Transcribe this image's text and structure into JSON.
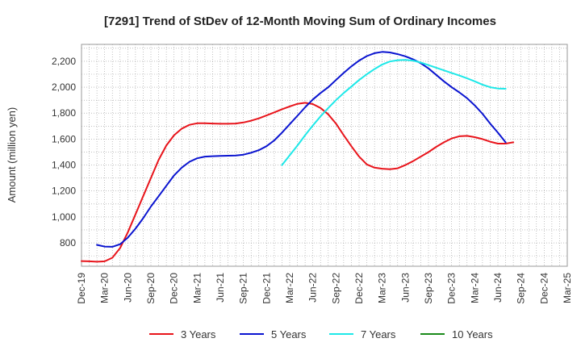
{
  "chart_data": {
    "type": "line",
    "title": "[7291]  Trend of StDev of 12-Month Moving Sum of Ordinary Incomes",
    "xlabel": "",
    "ylabel": "Amount (million yen)",
    "ylim": [
      620,
      2330
    ],
    "yticks": [
      800,
      1000,
      1200,
      1400,
      1600,
      1800,
      2000,
      2200
    ],
    "ytick_labels": [
      "800",
      "1,000",
      "1,200",
      "1,400",
      "1,600",
      "1,800",
      "2,000",
      "2,200"
    ],
    "xlim": [
      0,
      63
    ],
    "xticks": [
      0,
      3,
      6,
      9,
      12,
      15,
      18,
      21,
      24,
      27,
      30,
      33,
      36,
      39,
      42,
      45,
      48,
      51,
      54,
      57,
      60,
      63
    ],
    "xtick_labels": [
      "Dec-19",
      "Mar-20",
      "Jun-20",
      "Sep-20",
      "Dec-20",
      "Mar-21",
      "Jun-21",
      "Sep-21",
      "Dec-21",
      "Mar-22",
      "Jun-22",
      "Sep-22",
      "Dec-22",
      "Mar-23",
      "Jun-23",
      "Sep-23",
      "Dec-23",
      "Mar-24",
      "Jun-24",
      "Sep-24",
      "Dec-24",
      "Mar-25"
    ],
    "grid": true,
    "legend_position": "bottom",
    "series": [
      {
        "name": "3 Years",
        "color": "#e8141b",
        "start": 0,
        "values": [
          660,
          658,
          655,
          658,
          685,
          760,
          880,
          1020,
          1160,
          1300,
          1440,
          1550,
          1630,
          1680,
          1710,
          1722,
          1722,
          1720,
          1718,
          1718,
          1720,
          1728,
          1742,
          1760,
          1782,
          1806,
          1830,
          1852,
          1872,
          1880,
          1870,
          1840,
          1790,
          1720,
          1630,
          1545,
          1465,
          1405,
          1380,
          1372,
          1368,
          1375,
          1400,
          1430,
          1465,
          1500,
          1540,
          1575,
          1605,
          1622,
          1625,
          1615,
          1600,
          1580,
          1565,
          1565,
          1575
        ]
      },
      {
        "name": "5 Years",
        "color": "#0a14d0",
        "start": 2,
        "values": [
          785,
          772,
          770,
          790,
          840,
          910,
          990,
          1080,
          1160,
          1240,
          1320,
          1380,
          1425,
          1452,
          1465,
          1468,
          1470,
          1472,
          1474,
          1480,
          1495,
          1515,
          1545,
          1590,
          1650,
          1715,
          1780,
          1845,
          1905,
          1955,
          2000,
          2055,
          2110,
          2160,
          2205,
          2240,
          2262,
          2272,
          2268,
          2255,
          2238,
          2215,
          2185,
          2145,
          2095,
          2045,
          2000,
          1960,
          1915,
          1860,
          1795,
          1720,
          1650,
          1575
        ]
      },
      {
        "name": "7 Years",
        "color": "#1ee8e8",
        "start": 26,
        "values": [
          1400,
          1475,
          1550,
          1630,
          1705,
          1775,
          1840,
          1900,
          1955,
          2005,
          2055,
          2100,
          2140,
          2175,
          2198,
          2208,
          2210,
          2205,
          2190,
          2170,
          2150,
          2130,
          2110,
          2090,
          2068,
          2045,
          2020,
          2000,
          1990,
          1988
        ]
      },
      {
        "name": "10 Years",
        "color": "#1a8a1a",
        "start": 0,
        "values": []
      }
    ]
  }
}
